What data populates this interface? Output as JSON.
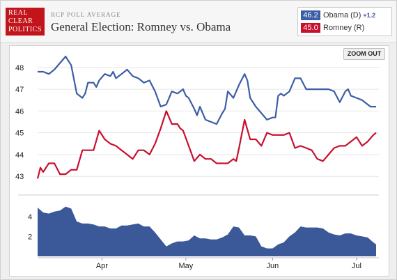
{
  "header": {
    "logo_lines": [
      "REAL",
      "CLEAR",
      "POLITICS"
    ],
    "kicker": "RCP POLL AVERAGE",
    "title": "General Election: Romney vs. Obama"
  },
  "legend": {
    "obama": {
      "value": "46.2",
      "name": "Obama (D)",
      "spread": "+1.2",
      "color": "#3b5ea6"
    },
    "romney": {
      "value": "45.0",
      "name": "Romney (R)",
      "color": "#c8102e"
    }
  },
  "controls": {
    "zoom_out": "ZOOM OUT"
  },
  "chart_data": [
    {
      "type": "line",
      "title": "",
      "ylim": [
        42.4,
        48.6
      ],
      "yticks": [
        43,
        44,
        45,
        46,
        47,
        48
      ],
      "xlim": [
        0,
        122
      ],
      "x_months": [
        {
          "label": "Apr",
          "x": 23
        },
        {
          "label": "May",
          "x": 53
        },
        {
          "label": "Jun",
          "x": 84
        },
        {
          "label": "Jul",
          "x": 114
        }
      ],
      "grid": true,
      "series": [
        {
          "name": "Obama (D)",
          "color": "#3b5ea6",
          "x": [
            0,
            2,
            4,
            6,
            8,
            10,
            12,
            14,
            16,
            17,
            18,
            20,
            21,
            22,
            24,
            26,
            27,
            28,
            30,
            32,
            34,
            36,
            38,
            40,
            42,
            44,
            46,
            48,
            50,
            52,
            53,
            54,
            56,
            57,
            58,
            60,
            62,
            64,
            66,
            67,
            68,
            70,
            72,
            74,
            75,
            76,
            78,
            80,
            82,
            84,
            85,
            86,
            87,
            88,
            90,
            92,
            94,
            96,
            97,
            98,
            100,
            102,
            104,
            106,
            108,
            110,
            111,
            112,
            114,
            116,
            118,
            119,
            120,
            121
          ],
          "values": [
            47.8,
            47.8,
            47.7,
            47.9,
            48.2,
            48.5,
            48.1,
            46.8,
            46.6,
            46.8,
            47.3,
            47.3,
            47.1,
            47.4,
            47.7,
            47.6,
            47.8,
            47.5,
            47.7,
            47.9,
            47.6,
            47.5,
            47.3,
            47.4,
            46.9,
            46.2,
            46.3,
            46.9,
            46.8,
            47.0,
            46.7,
            46.6,
            46.1,
            45.8,
            46.2,
            45.6,
            45.5,
            45.4,
            45.9,
            46.1,
            46.9,
            46.6,
            47.2,
            47.7,
            47.4,
            46.6,
            46.2,
            45.9,
            45.6,
            45.7,
            45.7,
            46.7,
            46.8,
            46.7,
            46.9,
            47.5,
            47.5,
            47.0,
            47.0,
            47.0,
            47.0,
            47.0,
            47.0,
            46.9,
            46.4,
            46.9,
            47.0,
            46.7,
            46.6,
            46.5,
            46.3,
            46.2,
            46.2,
            46.2
          ]
        },
        {
          "name": "Romney (R)",
          "color": "#c8102e",
          "x": [
            0,
            1,
            2,
            4,
            6,
            8,
            10,
            12,
            14,
            16,
            18,
            20,
            22,
            24,
            25,
            26,
            28,
            30,
            32,
            34,
            36,
            38,
            40,
            42,
            44,
            46,
            48,
            50,
            51,
            52,
            54,
            56,
            58,
            60,
            62,
            64,
            66,
            68,
            70,
            71,
            72,
            74,
            76,
            78,
            80,
            82,
            84,
            86,
            88,
            90,
            92,
            94,
            96,
            98,
            100,
            102,
            104,
            106,
            108,
            110,
            112,
            114,
            116,
            118,
            120,
            121
          ],
          "values": [
            42.9,
            43.4,
            43.2,
            43.6,
            43.6,
            43.1,
            43.1,
            43.3,
            43.3,
            44.2,
            44.2,
            44.2,
            45.1,
            44.7,
            44.6,
            44.5,
            44.4,
            44.2,
            44.0,
            43.8,
            44.2,
            44.2,
            44.0,
            44.5,
            45.2,
            46.0,
            45.4,
            45.4,
            45.2,
            45.1,
            44.4,
            43.7,
            44.0,
            43.8,
            43.8,
            43.6,
            43.6,
            43.6,
            43.8,
            43.7,
            44.3,
            45.6,
            44.7,
            44.7,
            44.4,
            45.0,
            44.9,
            44.9,
            44.9,
            45.0,
            44.3,
            44.4,
            44.3,
            44.2,
            43.8,
            43.7,
            44.0,
            44.3,
            44.4,
            44.4,
            44.6,
            44.8,
            44.4,
            44.6,
            44.9,
            45.0
          ]
        }
      ]
    },
    {
      "type": "area",
      "title": "",
      "ylim": [
        0,
        5.6
      ],
      "yticks": [
        2,
        4
      ],
      "xlim": [
        0,
        122
      ],
      "grid": false,
      "series": [
        {
          "name": "Spread",
          "color": "#3b5998",
          "x": [
            0,
            2,
            4,
            6,
            8,
            10,
            12,
            14,
            16,
            18,
            20,
            22,
            24,
            26,
            28,
            30,
            32,
            34,
            36,
            38,
            40,
            42,
            44,
            46,
            48,
            50,
            52,
            54,
            56,
            58,
            60,
            62,
            64,
            66,
            68,
            70,
            72,
            74,
            76,
            78,
            80,
            82,
            84,
            86,
            88,
            90,
            92,
            94,
            96,
            98,
            100,
            102,
            104,
            106,
            108,
            110,
            112,
            114,
            116,
            118,
            120,
            121
          ],
          "values": [
            4.9,
            4.4,
            4.3,
            4.5,
            4.6,
            5.0,
            4.8,
            3.5,
            3.3,
            3.3,
            3.2,
            3.0,
            3.0,
            2.8,
            2.8,
            3.1,
            3.1,
            3.2,
            3.3,
            3.0,
            3.0,
            2.4,
            1.7,
            1.0,
            1.3,
            1.5,
            1.5,
            1.6,
            2.1,
            1.8,
            1.8,
            1.7,
            1.7,
            1.9,
            2.2,
            3.0,
            2.9,
            2.1,
            2.1,
            2.0,
            1.0,
            0.8,
            0.8,
            1.2,
            1.4,
            2.0,
            2.4,
            3.0,
            2.9,
            2.9,
            2.9,
            2.8,
            2.4,
            2.2,
            2.1,
            2.3,
            2.3,
            2.1,
            2.0,
            1.9,
            1.4,
            1.2
          ]
        }
      ]
    }
  ]
}
